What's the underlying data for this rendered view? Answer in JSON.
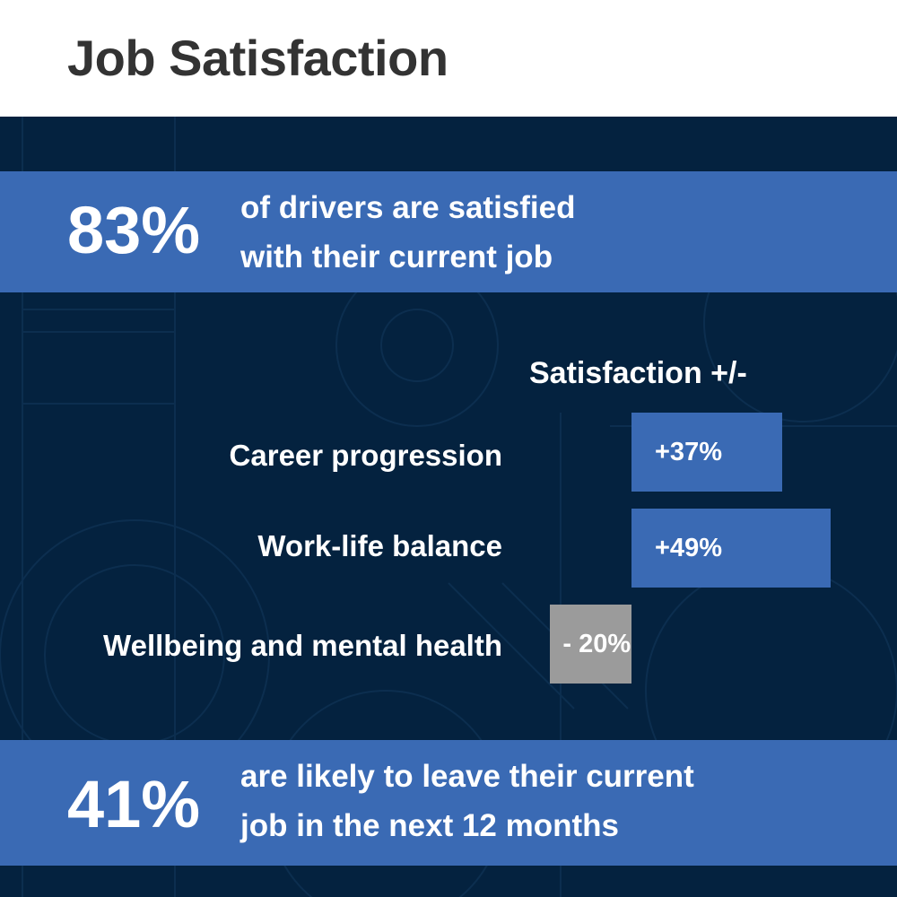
{
  "title": "Job Satisfaction",
  "stats": [
    {
      "value": "83%",
      "lines": [
        "of drivers are satisfied",
        "with their current job"
      ]
    },
    {
      "value": "41%",
      "lines": [
        "are likely to leave their current",
        "job in the next 12 months"
      ]
    }
  ],
  "colors": {
    "background": "#04223f",
    "accent_blue": "#3a6ab4",
    "negative_grey": "#9b9b9b",
    "title_text": "#333333"
  },
  "chart_data": {
    "type": "bar",
    "orientation": "horizontal",
    "title": "Satisfaction +/-",
    "categories": [
      "Career progression",
      "Work-life balance",
      "Wellbeing and mental health"
    ],
    "values": [
      37,
      49,
      -20
    ],
    "value_labels": [
      "+37%",
      "+49%",
      "- 20%"
    ],
    "unit": "%",
    "xlim": [
      -20,
      49
    ],
    "grid": false,
    "legend": "none"
  }
}
